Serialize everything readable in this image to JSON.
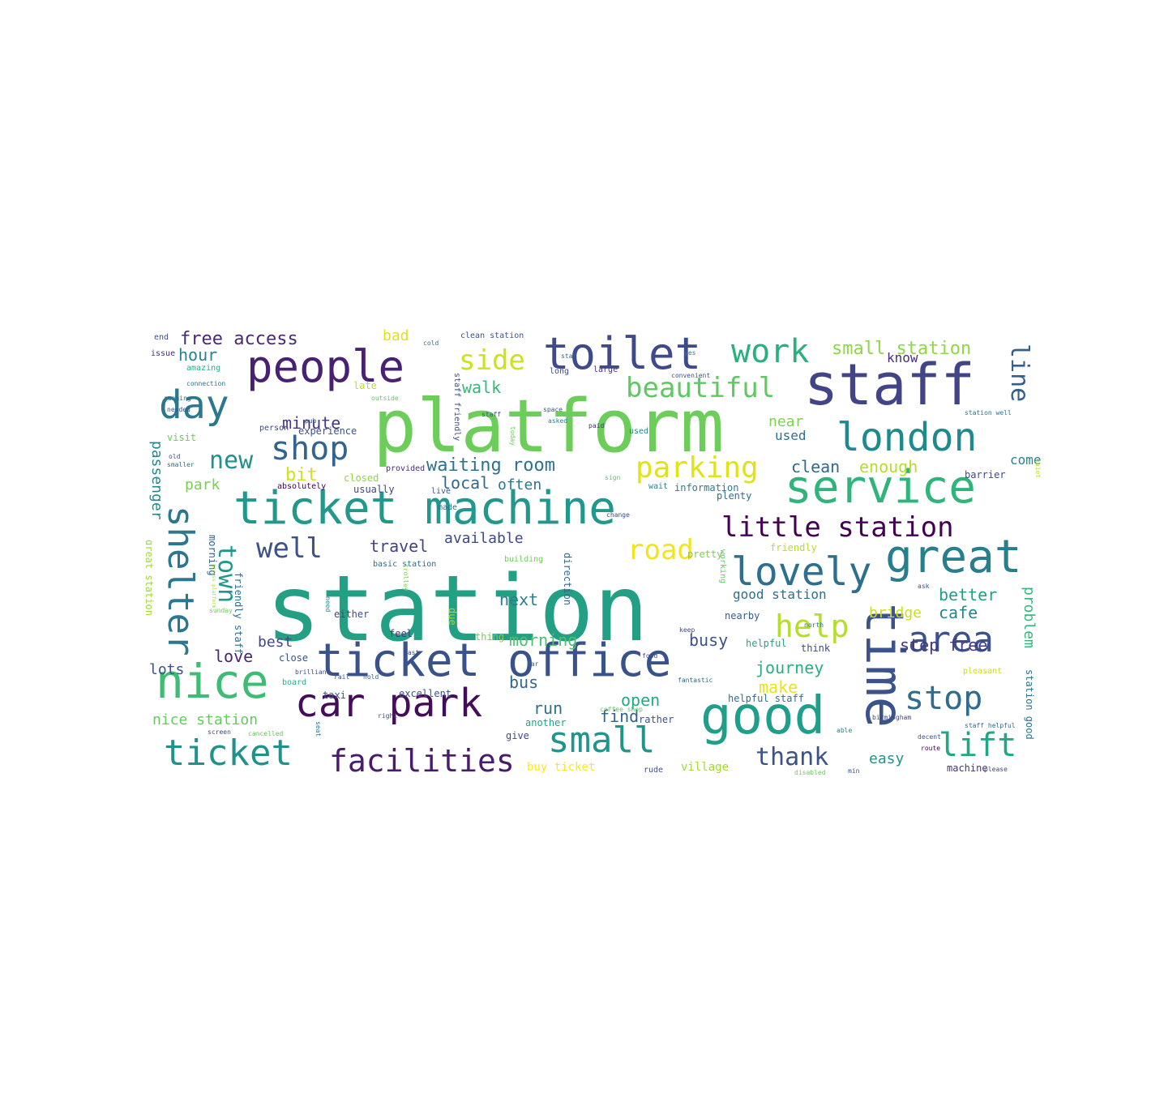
{
  "palette": {
    "dark_purple": "#440154",
    "purple": "#472878",
    "indigo": "#3b528b",
    "blue": "#2c728e",
    "teal": "#21918c",
    "green_teal": "#28ae80",
    "green": "#5ec962",
    "lime": "#addc30",
    "yellow": "#e5e419"
  },
  "words": [
    {
      "text": "station",
      "color": "#23a083"
    },
    {
      "text": "platform",
      "color": "#6ccd5a"
    },
    {
      "text": "ticket machine",
      "color": "#22978b"
    },
    {
      "text": "ticket office",
      "color": "#3a528b"
    },
    {
      "text": "staff",
      "color": "#414487"
    },
    {
      "text": "service",
      "color": "#2fb47c"
    },
    {
      "text": "time",
      "color": "#3b538b"
    },
    {
      "text": "good",
      "color": "#1f9e89"
    },
    {
      "text": "people",
      "color": "#482173"
    },
    {
      "text": "toilet",
      "color": "#3e4a89"
    },
    {
      "text": "great",
      "color": "#277f8e"
    },
    {
      "text": "london",
      "color": "#1e8a8c"
    },
    {
      "text": "car park",
      "color": "#440d5a"
    },
    {
      "text": "nice",
      "color": "#3fbc73"
    },
    {
      "text": "day",
      "color": "#2a788e"
    },
    {
      "text": "lovely",
      "color": "#2e6e8e"
    },
    {
      "text": "small",
      "color": "#1f968b"
    },
    {
      "text": "ticket",
      "color": "#21918c"
    },
    {
      "text": "shelter",
      "color": "#2a788e"
    },
    {
      "text": "facilities",
      "color": "#481b6d"
    },
    {
      "text": "area",
      "color": "#3b528b"
    },
    {
      "text": "stop",
      "color": "#2f6c8e"
    },
    {
      "text": "lift",
      "color": "#22a785"
    },
    {
      "text": "help",
      "color": "#b5de2b"
    },
    {
      "text": "parking",
      "color": "#dfe318"
    },
    {
      "text": "shop",
      "color": "#32648e"
    },
    {
      "text": "work",
      "color": "#2ab07f"
    },
    {
      "text": "side",
      "color": "#cde11d"
    },
    {
      "text": "little station",
      "color": "#440154"
    },
    {
      "text": "beautiful",
      "color": "#5ec962"
    },
    {
      "text": "road",
      "color": "#f1e51d"
    },
    {
      "text": "well",
      "color": "#3b528b"
    },
    {
      "text": "town",
      "color": "#1f978b"
    },
    {
      "text": "line",
      "color": "#355f8d"
    },
    {
      "text": "new",
      "color": "#21918c"
    },
    {
      "text": "thank",
      "color": "#3b528b"
    },
    {
      "text": "small station",
      "color": "#8fd744"
    },
    {
      "text": "free access",
      "color": "#482878"
    },
    {
      "text": "waiting room",
      "color": "#2c728e"
    },
    {
      "text": "hour",
      "color": "#26828e"
    },
    {
      "text": "walk",
      "color": "#35b779"
    },
    {
      "text": "minute",
      "color": "#443983"
    },
    {
      "text": "travel",
      "color": "#414487"
    },
    {
      "text": "available",
      "color": "#3e4989"
    },
    {
      "text": "local",
      "color": "#31688e"
    },
    {
      "text": "bit",
      "color": "#d2e21b"
    },
    {
      "text": "often",
      "color": "#2a788e"
    },
    {
      "text": "park",
      "color": "#7ad151"
    },
    {
      "text": "next",
      "color": "#277f8e"
    },
    {
      "text": "clean",
      "color": "#31688e"
    },
    {
      "text": "enough",
      "color": "#b5de2b"
    },
    {
      "text": "near",
      "color": "#7fd34e"
    },
    {
      "text": "used",
      "color": "#2c728e"
    },
    {
      "text": "come",
      "color": "#26828e"
    },
    {
      "text": "know",
      "color": "#472d7b"
    },
    {
      "text": "better",
      "color": "#1f9e89"
    },
    {
      "text": "bridge",
      "color": "#c8e020"
    },
    {
      "text": "cafe",
      "color": "#24868e"
    },
    {
      "text": "step free",
      "color": "#453882"
    },
    {
      "text": "journey",
      "color": "#2ab07f"
    },
    {
      "text": "make",
      "color": "#e7e419"
    },
    {
      "text": "open",
      "color": "#25ab82"
    },
    {
      "text": "run",
      "color": "#2d708e"
    },
    {
      "text": "find",
      "color": "#33638d"
    },
    {
      "text": "busy",
      "color": "#3b528b"
    },
    {
      "text": "morning",
      "color": "#4ac16d"
    },
    {
      "text": "bus",
      "color": "#31688e"
    },
    {
      "text": "best",
      "color": "#404688"
    },
    {
      "text": "love",
      "color": "#482576"
    },
    {
      "text": "lots",
      "color": "#3b528b"
    },
    {
      "text": "nice station",
      "color": "#63cb5f"
    },
    {
      "text": "passenger",
      "color": "#24868e"
    },
    {
      "text": "easy",
      "color": "#1f948c"
    },
    {
      "text": "problem",
      "color": "#35b779"
    },
    {
      "text": "bad",
      "color": "#dde318"
    },
    {
      "text": "good station",
      "color": "#2d708e"
    },
    {
      "text": "buy ticket",
      "color": "#fde725"
    },
    {
      "text": "village",
      "color": "#9fda3a"
    },
    {
      "text": "experience",
      "color": "#3b528b"
    },
    {
      "text": "visit",
      "color": "#6ccd5a"
    },
    {
      "text": "closed",
      "color": "#90d743"
    },
    {
      "text": "usually",
      "color": "#404688"
    },
    {
      "text": "information",
      "color": "#287c8e"
    },
    {
      "text": "friendly",
      "color": "#b8de29"
    },
    {
      "text": "pretty",
      "color": "#7ad151"
    },
    {
      "text": "nearby",
      "color": "#355f8d"
    },
    {
      "text": "helpful",
      "color": "#22a785"
    },
    {
      "text": "helpful staff",
      "color": "#2c728e"
    },
    {
      "text": "late",
      "color": "#b8de29"
    },
    {
      "text": "morning",
      "color": "#35608d"
    },
    {
      "text": "great station",
      "color": "#a0da39"
    },
    {
      "text": "friendly staff",
      "color": "#2d708e"
    },
    {
      "text": "either",
      "color": "#3e4a89"
    },
    {
      "text": "feel",
      "color": "#46327e"
    },
    {
      "text": "excellent",
      "color": "#3b528b"
    },
    {
      "text": "close",
      "color": "#3b528b"
    },
    {
      "text": "give",
      "color": "#3e4989"
    },
    {
      "text": "another",
      "color": "#20a486"
    },
    {
      "text": "rather",
      "color": "#3b528b"
    },
    {
      "text": "direction",
      "color": "#31688e"
    },
    {
      "text": "due",
      "color": "#9bd93c"
    },
    {
      "text": "thing",
      "color": "#73d056"
    },
    {
      "text": "station good",
      "color": "#2c728e"
    },
    {
      "text": "machine",
      "color": "#46327e"
    },
    {
      "text": "think",
      "color": "#3e4a89"
    },
    {
      "text": "plenty",
      "color": "#2c728e"
    },
    {
      "text": "taxi",
      "color": "#3b528b"
    },
    {
      "text": "board",
      "color": "#28ae80"
    },
    {
      "text": "long",
      "color": "#3e4a89"
    },
    {
      "text": "large",
      "color": "#46327e"
    },
    {
      "text": "staff friendly",
      "color": "#3e4a89"
    },
    {
      "text": "clean station",
      "color": "#3b528b"
    },
    {
      "text": "coffee shop",
      "color": "#5ec962"
    },
    {
      "text": "used",
      "color": "#26828e"
    },
    {
      "text": "building",
      "color": "#6ccd5a"
    },
    {
      "text": "basic station",
      "color": "#31688e"
    },
    {
      "text": "made",
      "color": "#2c728e"
    },
    {
      "text": "live",
      "color": "#3b528b"
    },
    {
      "text": "provided",
      "color": "#472d7b"
    },
    {
      "text": "absolutely",
      "color": "#440154"
    },
    {
      "text": "person",
      "color": "#3e4989"
    },
    {
      "text": "connection",
      "color": "#2c728e"
    },
    {
      "text": "amazing",
      "color": "#28ae80"
    },
    {
      "text": "issue",
      "color": "#472d7b"
    },
    {
      "text": "end",
      "color": "#3b528b"
    },
    {
      "text": "wait",
      "color": "#26828e"
    },
    {
      "text": "change",
      "color": "#3e4989"
    },
    {
      "text": "barrier",
      "color": "#3e4a89"
    },
    {
      "text": "convenient",
      "color": "#3b528b"
    },
    {
      "text": "station well",
      "color": "#2c728e"
    },
    {
      "text": "working",
      "color": "#5ec962"
    },
    {
      "text": "staff helpful",
      "color": "#31688e"
    },
    {
      "text": "cancelled",
      "color": "#5ec962"
    },
    {
      "text": "disabled",
      "color": "#6ccd5a"
    },
    {
      "text": "pleasant",
      "color": "#c8e020"
    },
    {
      "text": "rude",
      "color": "#3b528b"
    },
    {
      "text": "food",
      "color": "#3e4a89"
    },
    {
      "text": "fantastic",
      "color": "#31688e"
    },
    {
      "text": "ask",
      "color": "#3b528b"
    },
    {
      "text": "north",
      "color": "#2c728e"
    },
    {
      "text": "birmingham",
      "color": "#3e4989"
    },
    {
      "text": "decent",
      "color": "#3b528b"
    },
    {
      "text": "route",
      "color": "#440154"
    },
    {
      "text": "please",
      "color": "#3e4989"
    },
    {
      "text": "min",
      "color": "#3b528b"
    },
    {
      "text": "able",
      "color": "#26828e"
    },
    {
      "text": "smaller",
      "color": "#2c728e"
    },
    {
      "text": "old",
      "color": "#3b528b"
    },
    {
      "text": "sign",
      "color": "#5ec962"
    },
    {
      "text": "sunday",
      "color": "#6ccd5a"
    },
    {
      "text": "screen",
      "color": "#3e4989"
    },
    {
      "text": "seat",
      "color": "#2c728e"
    },
    {
      "text": "need",
      "color": "#26828e"
    },
    {
      "text": "rail",
      "color": "#3b528b"
    },
    {
      "text": "hold",
      "color": "#31688e"
    },
    {
      "text": "right",
      "color": "#3e4989"
    },
    {
      "text": "quiet",
      "color": "#b5de2b"
    },
    {
      "text": "brilliant",
      "color": "#3b528b"
    },
    {
      "text": "fast",
      "color": "#3e4989"
    },
    {
      "text": "far",
      "color": "#31688e"
    },
    {
      "text": "paid",
      "color": "#472d7b"
    },
    {
      "text": "space",
      "color": "#3b528b"
    },
    {
      "text": "asked",
      "color": "#26828e"
    },
    {
      "text": "today",
      "color": "#6ccd5a"
    },
    {
      "text": "access platform",
      "color": "#a0da39"
    },
    {
      "text": "staff",
      "color": "#3b528b"
    },
    {
      "text": "yes",
      "color": "#26828e"
    },
    {
      "text": "star",
      "color": "#31688e"
    },
    {
      "text": "keep",
      "color": "#3e4989"
    },
    {
      "text": "cold",
      "color": "#2c728e"
    },
    {
      "text": "pub",
      "color": "#3b528b"
    },
    {
      "text": "outside",
      "color": "#5ec962"
    },
    {
      "text": "trolley",
      "color": "#7ad151"
    },
    {
      "text": "running",
      "color": "#31688e"
    },
    {
      "text": "needed",
      "color": "#3b528b"
    }
  ]
}
